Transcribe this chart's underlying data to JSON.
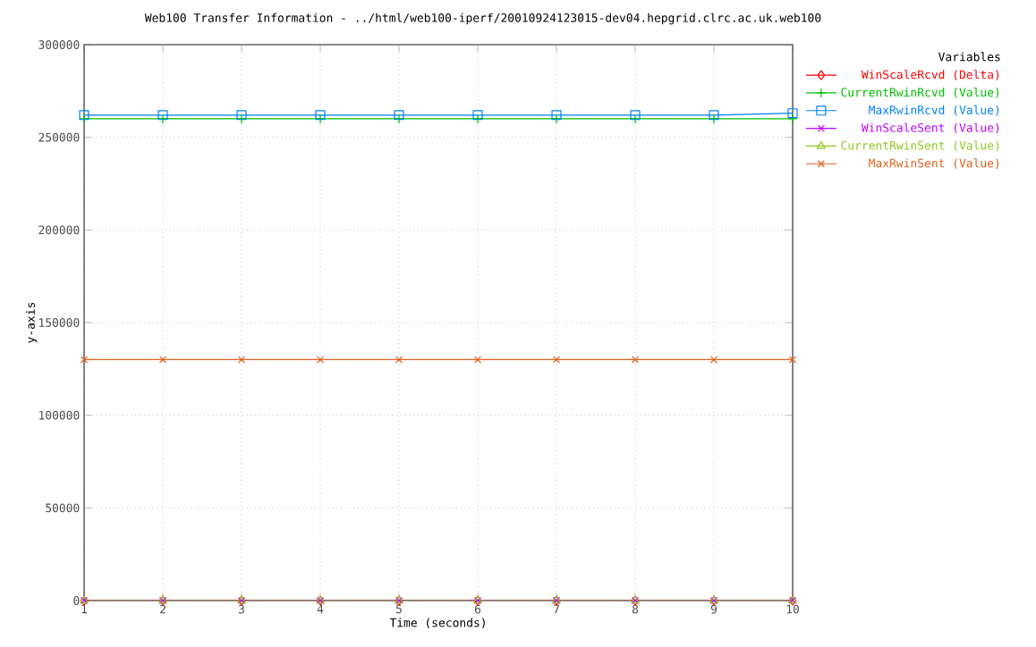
{
  "chart_data": {
    "type": "line",
    "title": "Web100 Transfer Information - ../html/web100-iperf/20010924123015-dev04.hepgrid.clrc.ac.uk.web100",
    "xlabel": "Time (seconds)",
    "ylabel": "y-axis",
    "legend_title": "Variables",
    "legend": "top right",
    "grid": true,
    "x": [
      1,
      2,
      3,
      4,
      5,
      6,
      7,
      8,
      9,
      10
    ],
    "xlim": [
      1,
      10
    ],
    "xticks": [
      1,
      2,
      3,
      4,
      5,
      6,
      7,
      8,
      9,
      10
    ],
    "ylim": [
      0,
      300000
    ],
    "yticks": [
      0,
      50000,
      100000,
      150000,
      200000,
      250000,
      300000
    ],
    "series": [
      {
        "name": "WinScaleRcvd (Delta)",
        "color": "#ff0000",
        "marker": "diamond",
        "values": [
          0,
          0,
          0,
          0,
          0,
          0,
          0,
          0,
          0,
          0
        ]
      },
      {
        "name": "CurrentRwinRcvd (Value)",
        "color": "#00c000",
        "marker": "plus",
        "values": [
          260000,
          260000,
          260000,
          260000,
          260000,
          260000,
          260000,
          260000,
          260000,
          260000
        ]
      },
      {
        "name": "MaxRwinRcvd (Value)",
        "color": "#0080ff",
        "marker": "square",
        "values": [
          262000,
          262000,
          262000,
          262000,
          262000,
          262000,
          262000,
          262000,
          262000,
          263000
        ]
      },
      {
        "name": "WinScaleSent (Value)",
        "color": "#c000ff",
        "marker": "cross",
        "values": [
          0,
          0,
          0,
          0,
          0,
          0,
          0,
          0,
          0,
          0
        ]
      },
      {
        "name": "CurrentRwinSent (Value)",
        "color": "#90c820",
        "marker": "triangle",
        "values": [
          0,
          0,
          0,
          0,
          0,
          0,
          0,
          0,
          0,
          0
        ]
      },
      {
        "name": "MaxRwinSent (Value)",
        "color": "#e06020",
        "marker": "cross",
        "values": [
          130000,
          130000,
          130000,
          130000,
          130000,
          130000,
          130000,
          130000,
          130000,
          130000
        ]
      }
    ]
  }
}
